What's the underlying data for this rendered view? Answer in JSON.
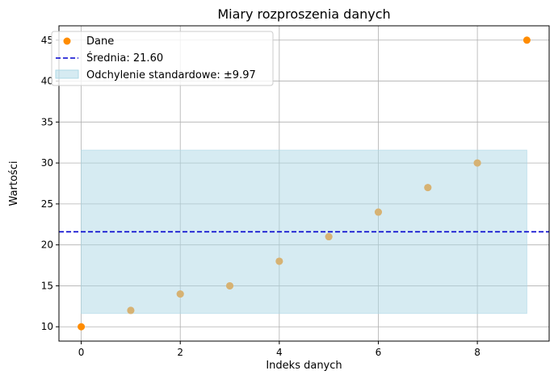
{
  "chart_data": {
    "type": "scatter",
    "title": "Miary rozproszenia danych",
    "xlabel": "Indeks danych",
    "ylabel": "Wartości",
    "x": [
      0,
      1,
      2,
      3,
      4,
      5,
      6,
      7,
      8,
      9
    ],
    "y": [
      10,
      12,
      14,
      15,
      18,
      21,
      24,
      27,
      30,
      45
    ],
    "xlim": [
      -0.45,
      9.45
    ],
    "ylim": [
      8.25,
      46.75
    ],
    "xticks": [
      0,
      2,
      4,
      6,
      8
    ],
    "yticks": [
      10,
      15,
      20,
      25,
      30,
      35,
      40,
      45
    ],
    "mean": 21.6,
    "std": 9.97,
    "band": [
      11.63,
      31.57
    ],
    "grid": true,
    "legend_position": "top-left",
    "legend": {
      "data_label": "Dane",
      "mean_label": "Średnia: 21.60",
      "std_label": "Odchylenie standardowe: ±9.97"
    },
    "colors": {
      "points": "#ff8c00",
      "mean_line": "#0000cd",
      "band": "#add8e6",
      "grid": "#b0b0b0"
    }
  }
}
